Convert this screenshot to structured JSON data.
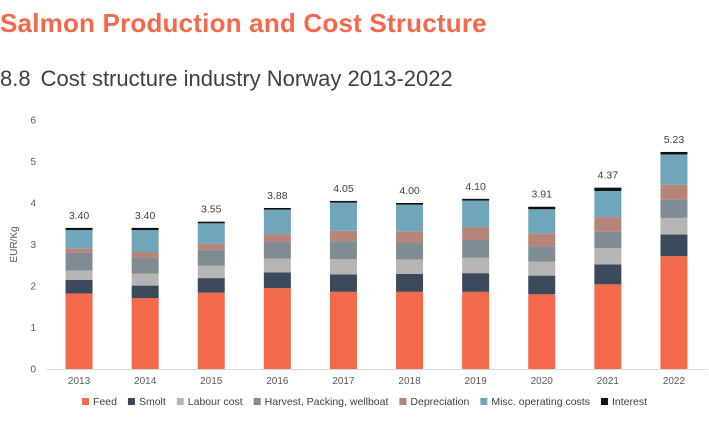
{
  "header": {
    "title": "Salmon Production and Cost Structure",
    "section_number": "8.8",
    "subtitle": "Cost structure industry Norway 2013-2022"
  },
  "chart_data": {
    "type": "bar",
    "stacked": true,
    "title": "",
    "xlabel": "",
    "ylabel": "EUR/Kg",
    "ylim": [
      0,
      6
    ],
    "yticks": [
      "0",
      "1",
      "2",
      "3",
      "4",
      "5",
      "6"
    ],
    "grid": false,
    "legend_position": "bottom",
    "categories": [
      "2013",
      "2014",
      "2015",
      "2016",
      "2017",
      "2018",
      "2019",
      "2020",
      "2021",
      "2022"
    ],
    "totals": [
      "3.40",
      "3.40",
      "3.55",
      "3.88",
      "4.05",
      "4.00",
      "4.10",
      "3.91",
      "4.37",
      "5.23"
    ],
    "series": [
      {
        "name": "Feed",
        "color": "#f26a4b",
        "values": [
          1.82,
          1.71,
          1.84,
          1.95,
          1.86,
          1.86,
          1.86,
          1.8,
          2.04,
          2.72
        ]
      },
      {
        "name": "Smolt",
        "color": "#3b4a5a",
        "values": [
          0.33,
          0.3,
          0.35,
          0.38,
          0.42,
          0.43,
          0.45,
          0.45,
          0.48,
          0.52
        ]
      },
      {
        "name": "Labour cost",
        "color": "#b5b5b5",
        "values": [
          0.22,
          0.29,
          0.3,
          0.33,
          0.37,
          0.35,
          0.37,
          0.34,
          0.39,
          0.4
        ]
      },
      {
        "name": "Harvest, Packing, wellboat",
        "color": "#7f8c93",
        "values": [
          0.43,
          0.39,
          0.38,
          0.41,
          0.43,
          0.41,
          0.43,
          0.37,
          0.4,
          0.45
        ]
      },
      {
        "name": "Depreciation",
        "color": "#b7847a",
        "values": [
          0.11,
          0.13,
          0.15,
          0.18,
          0.25,
          0.27,
          0.31,
          0.3,
          0.35,
          0.35
        ]
      },
      {
        "name": "Misc. operating costs",
        "color": "#6fa6b9",
        "values": [
          0.44,
          0.53,
          0.49,
          0.59,
          0.68,
          0.64,
          0.64,
          0.59,
          0.63,
          0.73
        ]
      },
      {
        "name": "Interest",
        "color": "#111111",
        "values": [
          0.05,
          0.05,
          0.04,
          0.04,
          0.04,
          0.04,
          0.04,
          0.06,
          0.08,
          0.06
        ]
      }
    ]
  }
}
